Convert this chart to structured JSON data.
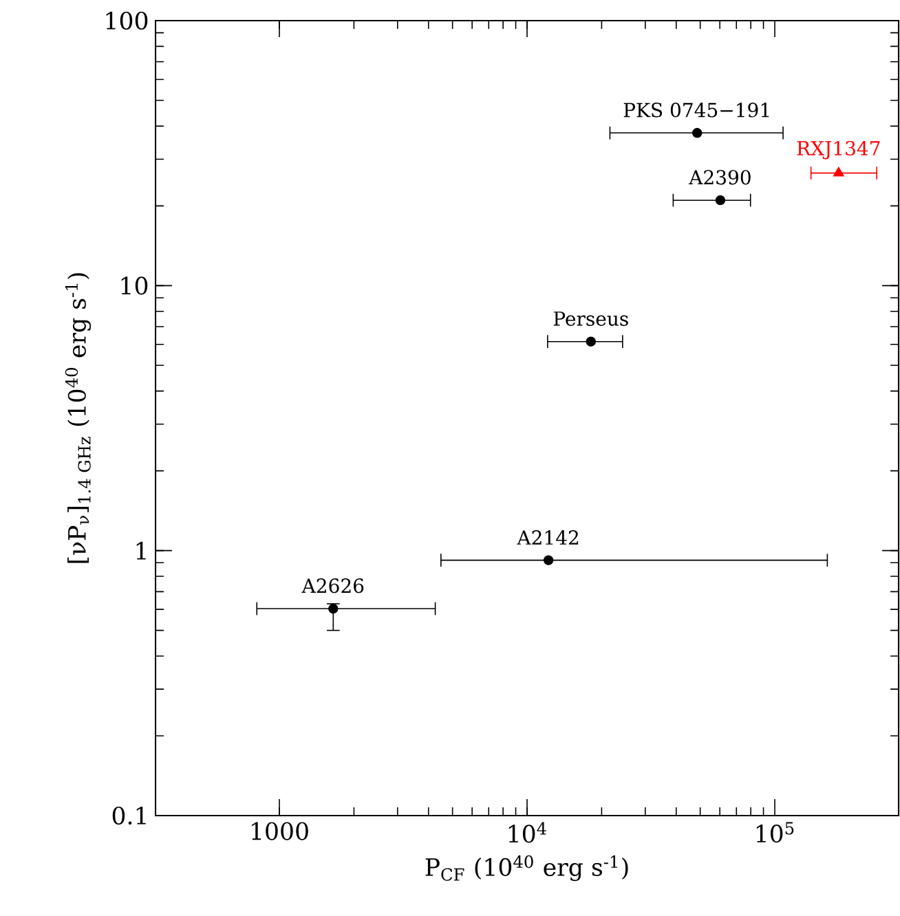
{
  "chart_data": {
    "type": "scatter",
    "xlabel": "P$_{CF}$ (10$^{40}$ erg s$^{-1}$)",
    "ylabel": "[νP$_{ν}$]$_{1.4 GHz}$ (10$^{40}$ erg s$^{-1}$)",
    "log": "xy",
    "xlim": [
      316.2,
      316228
    ],
    "ylim": [
      0.1,
      100
    ],
    "xticks": [
      1000,
      {
        "value": 10000,
        "label": "10$^{4}$"
      },
      {
        "value": 100000,
        "label": "10$^{5}$"
      }
    ],
    "yticks": [
      0.1,
      1,
      10,
      100
    ],
    "series": [
      {
        "color": "#000000",
        "marker": "circle",
        "x": [
          48600,
          60300,
          18100,
          12200,
          1650
        ],
        "values": [
          37.7,
          21.0,
          6.15,
          0.92,
          0.604
        ],
        "xerrors": [
          [
            21600,
            108000
          ],
          [
            38900,
            79800
          ],
          [
            12100,
            24300
          ],
          [
            4490,
            163000
          ],
          [
            811,
            4260
          ]
        ],
        "errors": [
          null,
          null,
          null,
          null,
          [
            0.5,
            0.63
          ]
        ]
      },
      {
        "name": "RXJ1347",
        "color": "#ff0000",
        "marker": "triangle",
        "x": [
          181000
        ],
        "values": [
          26.6
        ],
        "xerrors": [
          [
            140000,
            258000
          ]
        ],
        "errors": [
          null
        ]
      }
    ],
    "annotations": [
      {
        "text": "PKS 0745−191",
        "x": 48600,
        "y": 37.7
      },
      {
        "text": "A2390",
        "x": 60300,
        "y": 21.0
      },
      {
        "text": "Perseus",
        "x": 18100,
        "y": 6.15
      },
      {
        "text": "A2142",
        "x": 12200,
        "y": 0.92
      },
      {
        "text": "A2626",
        "x": 1650,
        "y": 0.604
      }
    ]
  }
}
